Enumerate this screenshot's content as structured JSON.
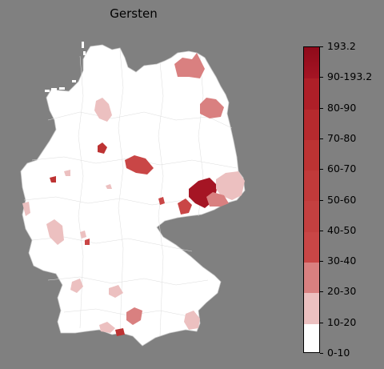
{
  "title": "Gersten",
  "legend": {
    "bins": [
      {
        "label": "0-10",
        "color": "#ffffff"
      },
      {
        "label": "10-20",
        "color": "#ecc0c0"
      },
      {
        "label": "20-30",
        "color": "#d98080"
      },
      {
        "label": "30-40",
        "color": "#c94646"
      },
      {
        "label": "40-50",
        "color": "#c44040"
      },
      {
        "label": "50-60",
        "color": "#c13a3a"
      },
      {
        "label": "60-70",
        "color": "#bd3333"
      },
      {
        "label": "70-80",
        "color": "#b72a2e"
      },
      {
        "label": "80-90",
        "color": "#ae1f28"
      },
      {
        "label": "90-193.2",
        "color": "#a51524"
      }
    ],
    "max_label": "193.2",
    "top_color": "#8f0a1a"
  }
}
